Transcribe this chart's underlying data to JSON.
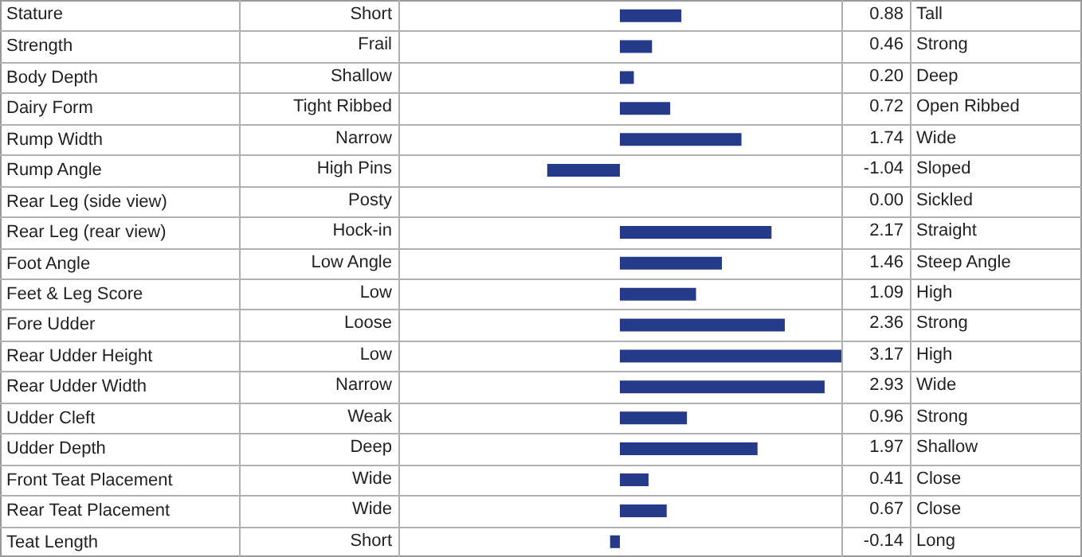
{
  "chart_data": {
    "type": "bar",
    "orientation": "horizontal",
    "color": "#263a8a",
    "tick_labels": "y",
    "categories": [
      "Stature",
      "Strength",
      "Body Depth",
      "Dairy Form",
      "Rump Width",
      "Rump Angle",
      "Rear Leg (side view)",
      "Rear Leg (rear view)",
      "Foot Angle",
      "Feet & Leg Score",
      "Fore Udder",
      "Rear Udder Height",
      "Rear Udder Width",
      "Udder Cleft",
      "Udder Depth",
      "Front Teat Placement",
      "Rear Teat Placement",
      "Teat Length"
    ],
    "values": [
      0.88,
      0.46,
      0.2,
      0.72,
      1.74,
      -1.04,
      0,
      2.17,
      1.46,
      1.09,
      2.36,
      3.17,
      2.93,
      0.96,
      1.97,
      0.41,
      0.67,
      -0.14
    ],
    "value_labels": [
      "0.88",
      "0.46",
      "0.20",
      "0.72",
      "1.74",
      "-1.04",
      "0.00",
      "2.17",
      "1.46",
      "1.09",
      "2.36",
      "3.17",
      "2.93",
      "0.96",
      "1.97",
      "0.41",
      "0.67",
      "-0.14"
    ],
    "annotations": [
      "Short",
      "Tall",
      "Frail",
      "Strong",
      "Shallow",
      "Deep",
      "Tight Ribbed",
      "Open Ribbed",
      "Narrow",
      "Wide",
      "High Pins",
      "Sloped",
      "Posty",
      "Sickled",
      "Hock-in",
      "Straight",
      "Low Angle",
      "Steep Angle",
      "Low",
      "High",
      "Loose",
      "Strong",
      "Low",
      "High",
      "Narrow",
      "Wide",
      "Weak",
      "Strong",
      "Deep",
      "Shallow",
      "Wide",
      "Close",
      "Wide",
      "Close",
      "Short",
      "Long"
    ]
  }
}
